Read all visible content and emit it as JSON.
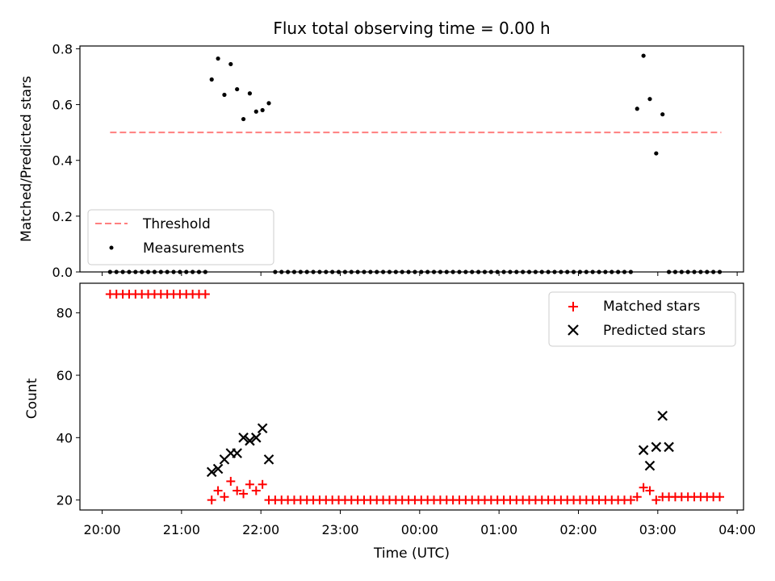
{
  "chart_data": [
    {
      "panel": "top",
      "type": "scatter",
      "title": "Flux total observing time = 0.00 h",
      "ylabel": "Matched/Predicted stars",
      "xlabel": "",
      "xlim_hours": [
        19.72,
        28.08
      ],
      "ylim": [
        0,
        0.81
      ],
      "yticks": [
        0.0,
        0.2,
        0.4,
        0.6,
        0.8
      ],
      "ytick_labels": [
        "0.0",
        "0.2",
        "0.4",
        "0.6",
        "0.8"
      ],
      "grid": false,
      "legend_position": "lower-left",
      "series": [
        {
          "name": "Threshold",
          "kind": "dashed-line",
          "color": "#ff7f7f",
          "x": [
            20.1,
            27.8
          ],
          "y": [
            0.5,
            0.5
          ]
        },
        {
          "name": "Measurements",
          "kind": "dot",
          "color": "#000000",
          "x": [
            20.1,
            20.18,
            20.26,
            20.34,
            20.42,
            20.5,
            20.58,
            20.66,
            20.74,
            20.82,
            20.9,
            20.98,
            21.06,
            21.14,
            21.22,
            21.3,
            21.38,
            21.46,
            21.54,
            21.62,
            21.7,
            21.78,
            21.86,
            21.94,
            22.02,
            22.1,
            22.18,
            22.26,
            22.34,
            22.42,
            22.5,
            22.58,
            22.66,
            22.74,
            22.82,
            22.9,
            22.98,
            23.06,
            23.14,
            23.22,
            23.3,
            23.38,
            23.46,
            23.54,
            23.62,
            23.7,
            23.78,
            23.86,
            23.94,
            24.02,
            24.1,
            24.18,
            24.26,
            24.34,
            24.42,
            24.5,
            24.58,
            24.66,
            24.74,
            24.82,
            24.9,
            24.98,
            25.06,
            25.14,
            25.22,
            25.3,
            25.38,
            25.46,
            25.54,
            25.62,
            25.7,
            25.78,
            25.86,
            25.94,
            26.02,
            26.1,
            26.18,
            26.26,
            26.34,
            26.42,
            26.5,
            26.58,
            26.66,
            26.74,
            26.82,
            26.9,
            26.98,
            27.06,
            27.14,
            27.22,
            27.3,
            27.38,
            27.46,
            27.54,
            27.62,
            27.7,
            27.78
          ],
          "y": [
            0,
            0,
            0,
            0,
            0,
            0,
            0,
            0,
            0,
            0,
            0,
            0,
            0,
            0,
            0,
            0,
            0.69,
            0.765,
            0.635,
            0.745,
            0.655,
            0.548,
            0.64,
            0.575,
            0.58,
            0.605,
            0,
            0,
            0,
            0,
            0,
            0,
            0,
            0,
            0,
            0,
            0,
            0,
            0,
            0,
            0,
            0,
            0,
            0,
            0,
            0,
            0,
            0,
            0,
            0,
            0,
            0,
            0,
            0,
            0,
            0,
            0,
            0,
            0,
            0,
            0,
            0,
            0,
            0,
            0,
            0,
            0,
            0,
            0,
            0,
            0,
            0,
            0,
            0,
            0,
            0,
            0,
            0,
            0,
            0,
            0,
            0,
            0,
            0.585,
            0.775,
            0.62,
            0.425,
            0.565,
            0,
            0,
            0,
            0,
            0,
            0,
            0,
            0,
            0
          ]
        }
      ]
    },
    {
      "panel": "bottom",
      "type": "scatter",
      "title": "",
      "xlabel": "Time (UTC)",
      "ylabel": "Count",
      "xlim_hours": [
        19.72,
        28.08
      ],
      "ylim": [
        16.8,
        89.5
      ],
      "xticks_hours": [
        20,
        21,
        22,
        23,
        24,
        25,
        26,
        27,
        28
      ],
      "xtick_labels": [
        "20:00",
        "21:00",
        "22:00",
        "23:00",
        "00:00",
        "01:00",
        "02:00",
        "03:00",
        "04:00"
      ],
      "yticks": [
        20,
        40,
        60,
        80
      ],
      "ytick_labels": [
        "20",
        "40",
        "60",
        "80"
      ],
      "grid": false,
      "legend_position": "top-right",
      "series": [
        {
          "name": "Matched stars",
          "kind": "plus",
          "color": "#ff0000",
          "x": [
            20.1,
            20.18,
            20.26,
            20.34,
            20.42,
            20.5,
            20.58,
            20.66,
            20.74,
            20.82,
            20.9,
            20.98,
            21.06,
            21.14,
            21.22,
            21.3,
            21.38,
            21.46,
            21.54,
            21.62,
            21.7,
            21.78,
            21.86,
            21.94,
            22.02,
            22.1,
            22.18,
            22.26,
            22.34,
            22.42,
            22.5,
            22.58,
            22.66,
            22.74,
            22.82,
            22.9,
            22.98,
            23.06,
            23.14,
            23.22,
            23.3,
            23.38,
            23.46,
            23.54,
            23.62,
            23.7,
            23.78,
            23.86,
            23.94,
            24.02,
            24.1,
            24.18,
            24.26,
            24.34,
            24.42,
            24.5,
            24.58,
            24.66,
            24.74,
            24.82,
            24.9,
            24.98,
            25.06,
            25.14,
            25.22,
            25.3,
            25.38,
            25.46,
            25.54,
            25.62,
            25.7,
            25.78,
            25.86,
            25.94,
            26.02,
            26.1,
            26.18,
            26.26,
            26.34,
            26.42,
            26.5,
            26.58,
            26.66,
            26.74,
            26.82,
            26.9,
            26.98,
            27.06,
            27.14,
            27.22,
            27.3,
            27.38,
            27.46,
            27.54,
            27.62,
            27.7,
            27.78
          ],
          "y": [
            86,
            86,
            86,
            86,
            86,
            86,
            86,
            86,
            86,
            86,
            86,
            86,
            86,
            86,
            86,
            86,
            20,
            23,
            21,
            26,
            23,
            22,
            25,
            23,
            25,
            20,
            20,
            20,
            20,
            20,
            20,
            20,
            20,
            20,
            20,
            20,
            20,
            20,
            20,
            20,
            20,
            20,
            20,
            20,
            20,
            20,
            20,
            20,
            20,
            20,
            20,
            20,
            20,
            20,
            20,
            20,
            20,
            20,
            20,
            20,
            20,
            20,
            20,
            20,
            20,
            20,
            20,
            20,
            20,
            20,
            20,
            20,
            20,
            20,
            20,
            20,
            20,
            20,
            20,
            20,
            20,
            20,
            20,
            21,
            24,
            23,
            20,
            21,
            21,
            21,
            21,
            21,
            21,
            21,
            21,
            21,
            21
          ]
        },
        {
          "name": "Predicted stars",
          "kind": "x",
          "color": "#000000",
          "x": [
            21.38,
            21.46,
            21.54,
            21.62,
            21.7,
            21.78,
            21.86,
            21.94,
            22.02,
            22.1,
            26.82,
            26.9,
            26.98,
            27.06,
            27.14
          ],
          "y": [
            29,
            30,
            33,
            35,
            35,
            40,
            39,
            40,
            43,
            33,
            36,
            31,
            37,
            47,
            37
          ]
        }
      ]
    }
  ]
}
